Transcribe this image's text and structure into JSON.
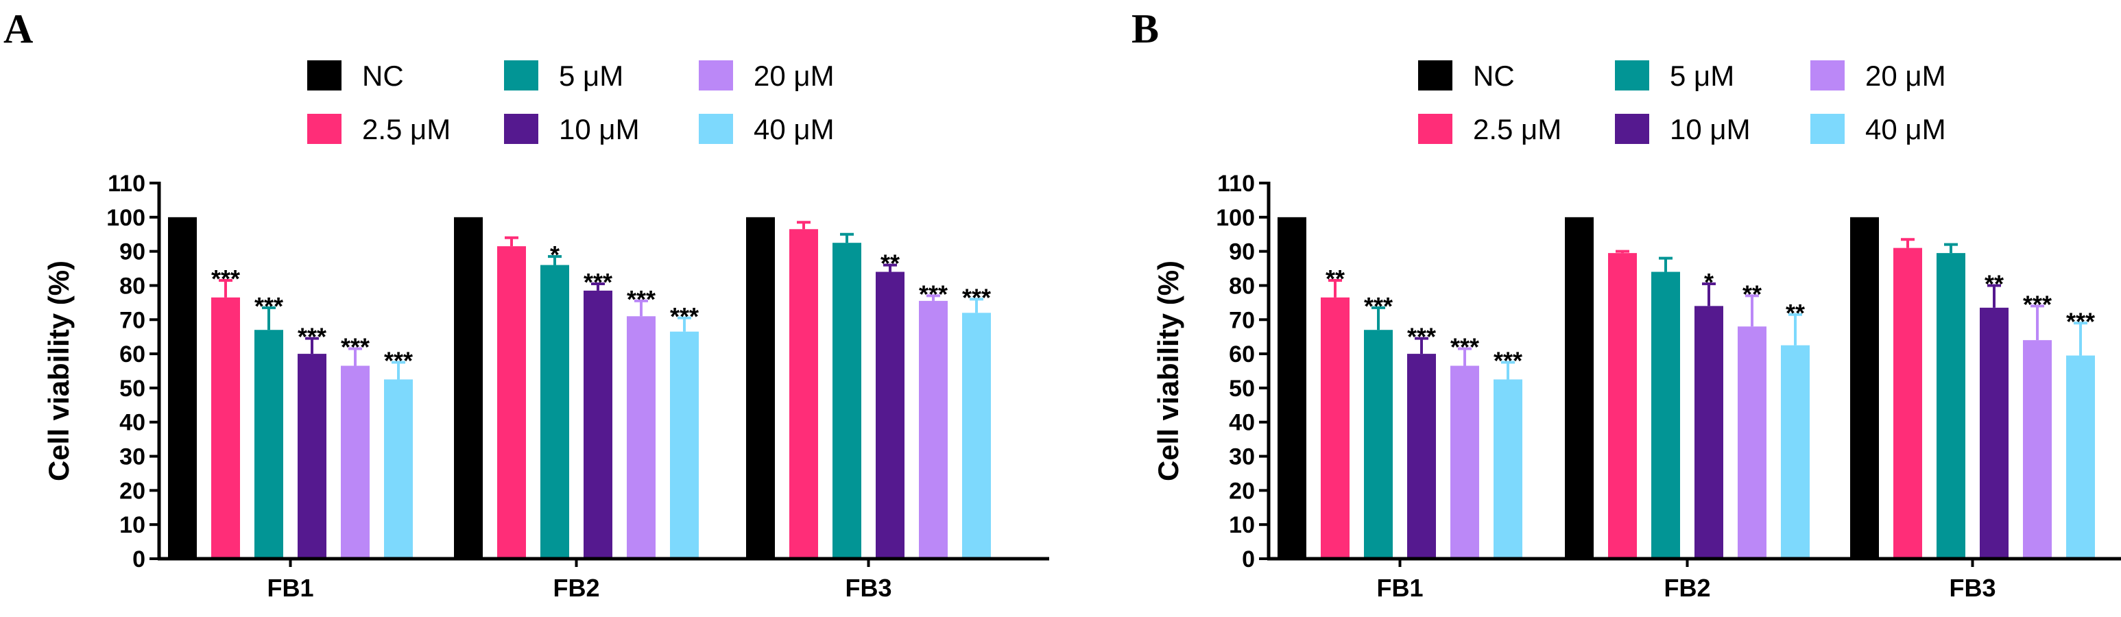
{
  "chart_data": [
    {
      "panel": "A",
      "type": "bar",
      "ylabel": "Cell viability (%)",
      "xlabel": "",
      "ylim": [
        0,
        110
      ],
      "yticks": [
        0,
        10,
        20,
        30,
        40,
        50,
        60,
        70,
        80,
        90,
        100,
        110
      ],
      "categories": [
        "FB1",
        "FB2",
        "FB3"
      ],
      "series": [
        {
          "name": "NC",
          "color": "#000000",
          "values": [
            100,
            100,
            100
          ],
          "errors": [
            0,
            0,
            0
          ],
          "sig": [
            "",
            "",
            ""
          ]
        },
        {
          "name": "2.5 μM",
          "color": "#ff2d78",
          "values": [
            76.5,
            91.5,
            96.5
          ],
          "errors": [
            5,
            2.5,
            2
          ],
          "sig": [
            "***",
            "",
            ""
          ]
        },
        {
          "name": "5 μM",
          "color": "#029595",
          "values": [
            67,
            86,
            92.5
          ],
          "errors": [
            6.5,
            2.5,
            2.5
          ],
          "sig": [
            "***",
            "*",
            ""
          ]
        },
        {
          "name": "10 μM",
          "color": "#55198f",
          "values": [
            60,
            78.5,
            84
          ],
          "errors": [
            4.5,
            2,
            2
          ],
          "sig": [
            "***",
            "***",
            "**"
          ]
        },
        {
          "name": "20 μM",
          "color": "#bb88f7",
          "values": [
            56.5,
            71,
            75.5
          ],
          "errors": [
            5,
            4.5,
            1.5
          ],
          "sig": [
            "***",
            "***",
            "***"
          ]
        },
        {
          "name": "40 μM",
          "color": "#7dd9fd",
          "values": [
            52.5,
            66.5,
            72
          ],
          "errors": [
            5,
            4,
            4
          ],
          "sig": [
            "***",
            "***",
            "***"
          ]
        }
      ]
    },
    {
      "panel": "B",
      "type": "bar",
      "ylabel": "Cell viability (%)",
      "xlabel": "",
      "ylim": [
        0,
        110
      ],
      "yticks": [
        0,
        10,
        20,
        30,
        40,
        50,
        60,
        70,
        80,
        90,
        100,
        110
      ],
      "categories": [
        "FB1",
        "FB2",
        "FB3"
      ],
      "series": [
        {
          "name": "NC",
          "color": "#000000",
          "values": [
            100,
            100,
            100
          ],
          "errors": [
            0,
            0,
            0
          ],
          "sig": [
            "",
            "",
            ""
          ]
        },
        {
          "name": "2.5 μM",
          "color": "#ff2d78",
          "values": [
            76.5,
            89.5,
            91
          ],
          "errors": [
            5,
            0.5,
            2.5
          ],
          "sig": [
            "**",
            "",
            ""
          ]
        },
        {
          "name": "5 μM",
          "color": "#029595",
          "values": [
            67,
            84,
            89.5
          ],
          "errors": [
            6.5,
            4,
            2.5
          ],
          "sig": [
            "***",
            "",
            ""
          ]
        },
        {
          "name": "10 μM",
          "color": "#55198f",
          "values": [
            60,
            74,
            73.5
          ],
          "errors": [
            4.5,
            6.5,
            6.5
          ],
          "sig": [
            "***",
            "*",
            "**"
          ]
        },
        {
          "name": "20 μM",
          "color": "#bb88f7",
          "values": [
            56.5,
            68,
            64
          ],
          "errors": [
            5,
            9,
            10
          ],
          "sig": [
            "***",
            "**",
            "***"
          ]
        },
        {
          "name": "40 μM",
          "color": "#7dd9fd",
          "values": [
            52.5,
            62.5,
            59.5
          ],
          "errors": [
            5,
            9,
            9.5
          ],
          "sig": [
            "***",
            "**",
            "***"
          ]
        }
      ]
    }
  ]
}
